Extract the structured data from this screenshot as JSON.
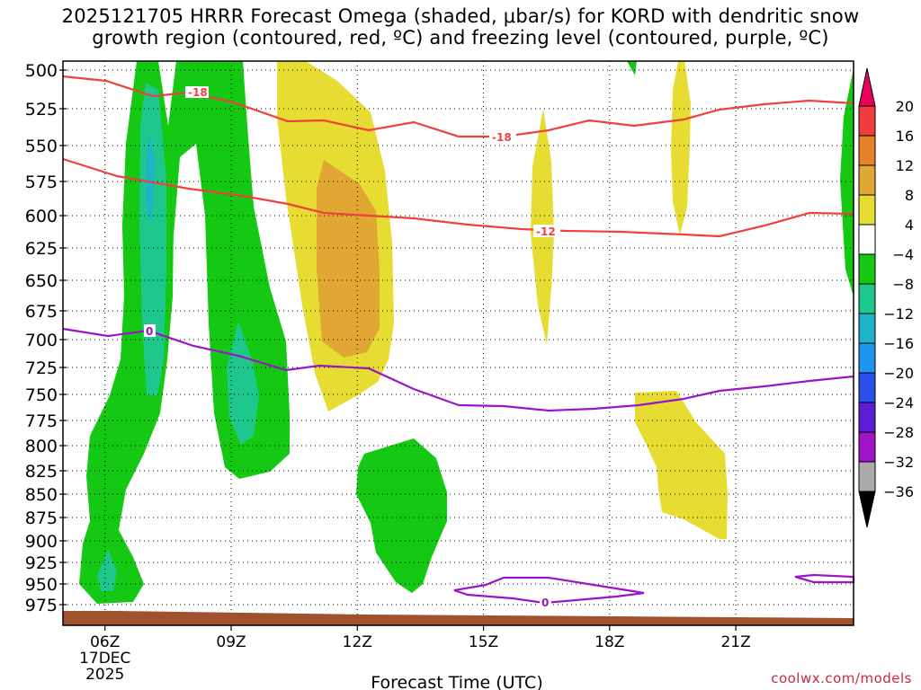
{
  "chart_data": {
    "type": "heatmap",
    "title_line1": "2025121705 HRRR Forecast Omega (shaded, μbar/s) for KORD with dendritic snow",
    "title_line2": "growth region (contoured, red, ºC) and freezing level (contoured, purple, ºC)",
    "xlabel": "Forecast Time (UTC)",
    "x_ticks": [
      {
        "hour": 6,
        "label": "06Z",
        "sub1": "17DEC",
        "sub2": "2025"
      },
      {
        "hour": 9,
        "label": "09Z"
      },
      {
        "hour": 12,
        "label": "12Z"
      },
      {
        "hour": 15,
        "label": "15Z"
      },
      {
        "hour": 18,
        "label": "18Z"
      },
      {
        "hour": 21,
        "label": "21Z"
      }
    ],
    "xlim": [
      5,
      23.8
    ],
    "pressure_levels": [
      "500",
      "525",
      "550",
      "575",
      "600",
      "625",
      "650",
      "675",
      "700",
      "725",
      "750",
      "775",
      "800",
      "825",
      "850",
      "875",
      "900",
      "925",
      "950",
      "975"
    ],
    "colorbar": {
      "labels": [
        "20",
        "16",
        "12",
        "8",
        "4",
        "−4",
        "−8",
        "−12",
        "−16",
        "−20",
        "−24",
        "−28",
        "−32",
        "−36"
      ],
      "colors": [
        "#e8005a",
        "#f03c3c",
        "#e8822a",
        "#e0a832",
        "#e6dc32",
        "#ffffff",
        "#14c814",
        "#1ec88c",
        "#1eb4c8",
        "#1e96f0",
        "#2850e6",
        "#5a1ed2",
        "#a014c8",
        "#aaaaaa",
        "#000000"
      ]
    },
    "omega_regions": [
      {
        "class": "-8 to -4",
        "color": "#14c814",
        "desc": "upward motion column 06Z-08Z, 500-975 hPa"
      },
      {
        "class": "-12 to -8",
        "color": "#1ec88c",
        "desc": "cores near 07Z and 09Z"
      },
      {
        "class": "4 to 8",
        "color": "#e6dc32",
        "desc": "sinking region 10Z-12Z, 500-775 hPa"
      },
      {
        "class": "8 to 12",
        "color": "#e0a832",
        "desc": "core near 11Z, 575-725 hPa"
      },
      {
        "class": "-8 to -4",
        "color": "#14c814",
        "desc": "low-level upward motion near 12Z-13Z, 775-950 hPa"
      },
      {
        "class": "4 to 8",
        "color": "#e6dc32",
        "desc": "sinking streaks near 16Z, 19Z and low-level 18Z-20Z"
      }
    ],
    "contours": [
      {
        "label": "-18",
        "color": "#f04040",
        "kind": "dendritic growth boundary"
      },
      {
        "label": "-12",
        "color": "#f04040",
        "kind": "dendritic growth boundary"
      },
      {
        "label": "0",
        "color": "#9a14c8",
        "kind": "freezing level"
      },
      {
        "label": "0",
        "color": "#9a14c8",
        "kind": "freezing level (near surface)"
      }
    ],
    "terrain_color": "#a0522d"
  },
  "credit": "coolwx.com/models"
}
